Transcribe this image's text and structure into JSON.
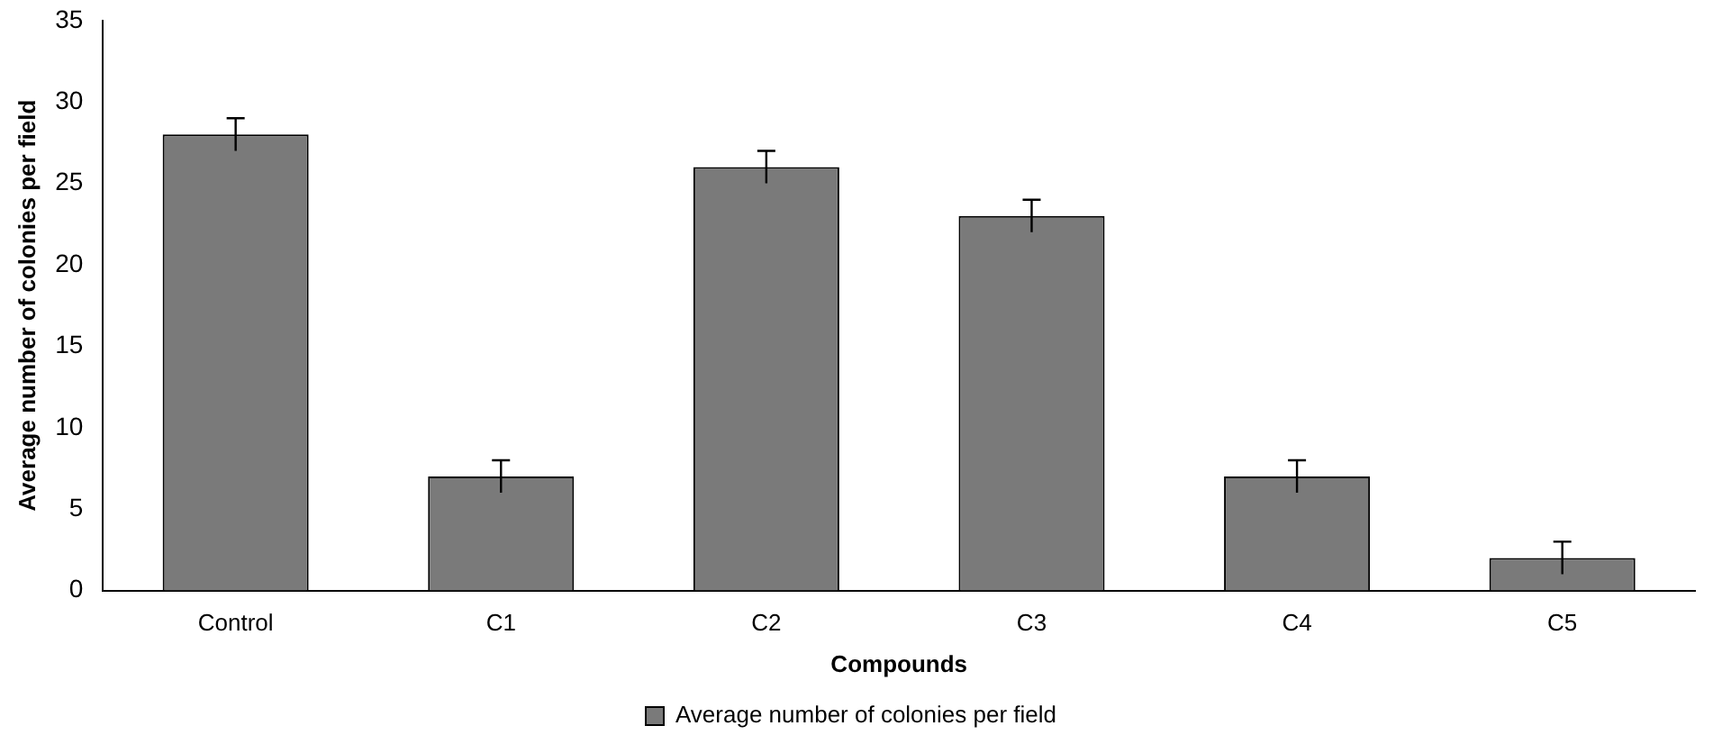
{
  "chart_data": {
    "type": "bar",
    "xlabel": "Compounds",
    "ylabel": "Average number of colonies per field",
    "categories": [
      "Control",
      "C1",
      "C2",
      "C3",
      "C4",
      "C5"
    ],
    "series": [
      {
        "name": "Average number of colonies per field",
        "color": "#7a7a7a",
        "values": [
          28,
          7,
          26,
          23,
          7,
          2
        ],
        "errors": [
          1,
          1,
          1,
          1,
          1,
          1
        ]
      }
    ],
    "ylim": [
      0,
      35
    ],
    "yticks": [
      0,
      5,
      10,
      15,
      20,
      25,
      30,
      35
    ],
    "grid": false,
    "legend": "bottom"
  }
}
